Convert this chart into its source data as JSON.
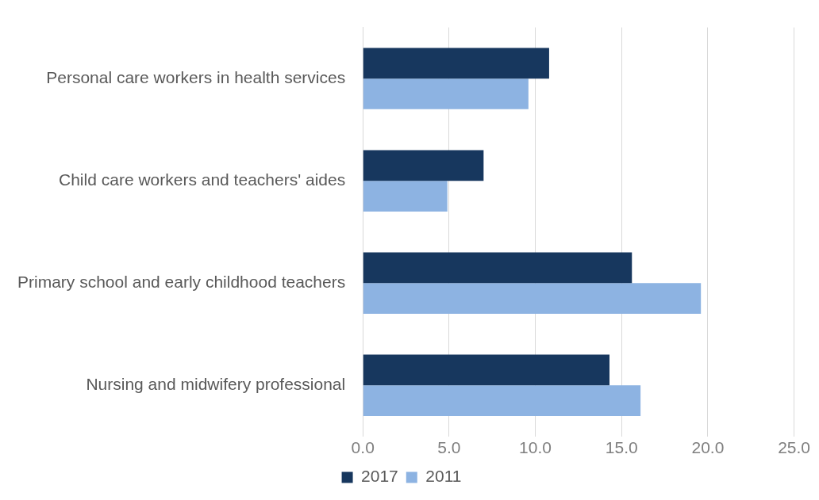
{
  "chart_data": {
    "type": "bar",
    "orientation": "horizontal",
    "categories": [
      "Personal care workers in health services",
      "Child care workers and teachers' aides",
      "Primary school and early childhood teachers",
      "Nursing and midwifery professional"
    ],
    "series": [
      {
        "name": "2017",
        "color": "#17375e",
        "values": [
          10.8,
          7.0,
          15.6,
          14.3
        ]
      },
      {
        "name": "2011",
        "color": "#8db3e2",
        "values": [
          9.6,
          4.9,
          19.6,
          16.1
        ]
      }
    ],
    "xlim": [
      0,
      25
    ],
    "xticks": [
      {
        "value": 0,
        "label": "0.0"
      },
      {
        "value": 5,
        "label": "5.0"
      },
      {
        "value": 10,
        "label": "10.0"
      },
      {
        "value": 15,
        "label": "15.0"
      },
      {
        "value": 20,
        "label": "20.0"
      },
      {
        "value": 25,
        "label": "25.0"
      }
    ],
    "grid": "x",
    "legend": "bottom"
  }
}
